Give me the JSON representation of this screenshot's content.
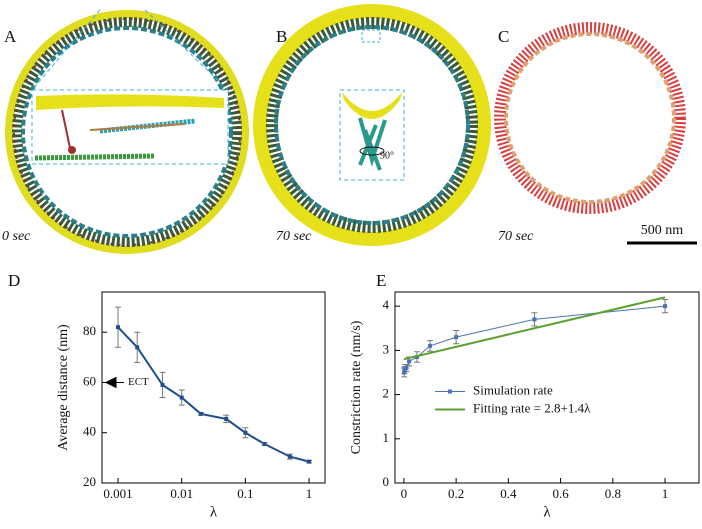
{
  "panels": [
    {
      "label": "A",
      "caption": "0 sec"
    },
    {
      "label": "B",
      "caption": "70 sec",
      "rotation": "90°"
    },
    {
      "label": "C",
      "caption": "70 sec",
      "scale_bar": "500 nm"
    }
  ],
  "chart_data": [
    {
      "type": "line",
      "panel": "D",
      "x_label": "λ",
      "y_label": "Average distance (nm)",
      "annotation": "ECT",
      "x": [
        0.001,
        0.002,
        0.005,
        0.01,
        0.02,
        0.05,
        0.1,
        0.2,
        0.5,
        1
      ],
      "values": [
        82,
        74,
        59,
        54,
        47.5,
        45.5,
        40,
        35.5,
        30.5,
        28.5
      ],
      "errors": [
        8,
        6,
        5,
        3,
        0.5,
        1.5,
        2,
        0.5,
        1,
        0.5
      ],
      "color": "#1f4e8c",
      "xlog": true,
      "xlim": [
        0.00056,
        1.78
      ],
      "xticks": [
        0.001,
        0.01,
        0.1,
        1
      ],
      "ylim": [
        20,
        96
      ],
      "yticks": [
        20,
        40,
        60,
        80
      ]
    },
    {
      "type": "line",
      "panel": "E",
      "x_label": "λ",
      "y_label": "Constriction rate (nm/s)",
      "xlog": false,
      "series": [
        {
          "name": "Simulation rate",
          "color": "#4a73b8",
          "markers": true,
          "x": [
            0.001,
            0.002,
            0.005,
            0.01,
            0.02,
            0.05,
            0.1,
            0.2,
            0.5,
            1
          ],
          "values": [
            2.5,
            2.55,
            2.6,
            2.6,
            2.75,
            2.85,
            3.1,
            3.3,
            3.7,
            4.0
          ],
          "errors": [
            0.1,
            0.08,
            0.08,
            0.08,
            0.1,
            0.12,
            0.12,
            0.15,
            0.15,
            0.15
          ]
        },
        {
          "name": "Fitting rate = 2.8+1.4λ",
          "color": "#5aa02c",
          "markers": false,
          "x": [
            0,
            1
          ],
          "values": [
            2.8,
            4.2
          ]
        }
      ],
      "legend": "center",
      "xlim": [
        -0.034,
        1.13
      ],
      "xticks": [
        0,
        0.2,
        0.4,
        0.6,
        0.8,
        1
      ],
      "ylim": [
        0,
        4.32
      ],
      "yticks": [
        0,
        1,
        2,
        3,
        4
      ]
    }
  ]
}
